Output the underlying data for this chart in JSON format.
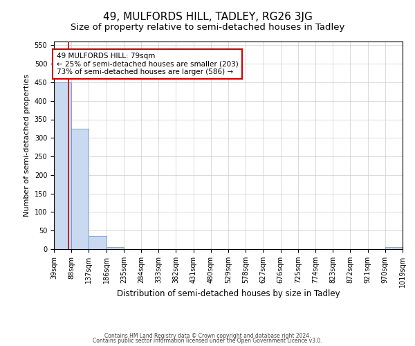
{
  "title": "49, MULFORDS HILL, TADLEY, RG26 3JG",
  "subtitle": "Size of property relative to semi-detached houses in Tadley",
  "xlabel": "Distribution of semi-detached houses by size in Tadley",
  "ylabel": "Number of semi-detached properties",
  "bin_edges": [
    39,
    88,
    137,
    186,
    235,
    284,
    333,
    382,
    431,
    480,
    529,
    578,
    627,
    676,
    725,
    774,
    823,
    872,
    921,
    970,
    1019
  ],
  "bar_heights": [
    450,
    325,
    35,
    5,
    0,
    0,
    0,
    0,
    0,
    0,
    0,
    0,
    0,
    0,
    0,
    0,
    0,
    0,
    0,
    5
  ],
  "bar_color": "#c9d9f0",
  "bar_edgecolor": "#5b8ac4",
  "property_size": 79,
  "property_line_color": "#cc0000",
  "annotation_line1": "49 MULFORDS HILL: 79sqm",
  "annotation_line2": "← 25% of semi-detached houses are smaller (203)",
  "annotation_line3": "73% of semi-detached houses are larger (586) →",
  "annotation_box_color": "#ffffff",
  "annotation_box_edgecolor": "#cc0000",
  "ylim": [
    0,
    560
  ],
  "yticks": [
    0,
    50,
    100,
    150,
    200,
    250,
    300,
    350,
    400,
    450,
    500,
    550
  ],
  "footer_line1": "Contains HM Land Registry data © Crown copyright and database right 2024.",
  "footer_line2": "Contains public sector information licensed under the Open Government Licence v3.0.",
  "grid_color": "#cccccc",
  "background_color": "#ffffff",
  "title_fontsize": 11,
  "subtitle_fontsize": 9.5,
  "tick_fontsize": 7,
  "ylabel_fontsize": 8,
  "xlabel_fontsize": 8.5,
  "annotation_fontsize": 7.5,
  "footer_fontsize": 5.5
}
